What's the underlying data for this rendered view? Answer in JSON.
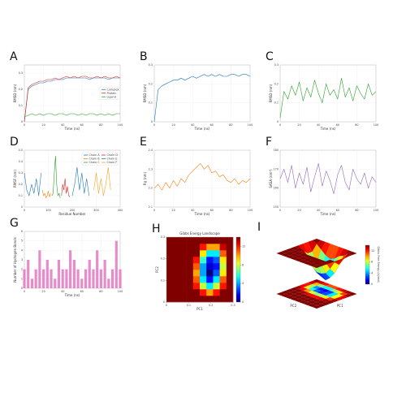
{
  "chart_data": [
    {
      "type": "line",
      "panel": "A",
      "xlabel": "Time (ns)",
      "ylabel": "RMSD (nm)",
      "legend": "right",
      "grid": true,
      "x": [
        0,
        4,
        8,
        12,
        16,
        20,
        24,
        28,
        32,
        36,
        40,
        44,
        48,
        52,
        56,
        60,
        64,
        68,
        72,
        76,
        80,
        84,
        88,
        92,
        96,
        100
      ],
      "xlim": [
        0,
        100
      ],
      "xticks": [
        0,
        20,
        40,
        60,
        80,
        100
      ],
      "ylim": [
        0,
        0.35
      ],
      "yticks": [
        0,
        0.1,
        0.2,
        0.3
      ],
      "series": [
        {
          "name": "Complex",
          "color": "#1f77b4",
          "values": [
            0,
            0.2,
            0.22,
            0.23,
            0.24,
            0.24,
            0.25,
            0.25,
            0.26,
            0.26,
            0.26,
            0.27,
            0.27,
            0.27,
            0.27,
            0.27,
            0.27,
            0.26,
            0.27,
            0.27,
            0.27,
            0.27,
            0.26,
            0.27,
            0.27,
            0.27
          ]
        },
        {
          "name": "Protein",
          "color": "#d62728",
          "values": [
            0,
            0.21,
            0.23,
            0.24,
            0.25,
            0.25,
            0.26,
            0.26,
            0.27,
            0.26,
            0.27,
            0.28,
            0.27,
            0.28,
            0.27,
            0.28,
            0.28,
            0.27,
            0.27,
            0.28,
            0.27,
            0.28,
            0.27,
            0.27,
            0.28,
            0.27
          ]
        },
        {
          "name": "Ligand",
          "color": "#2ca02c",
          "values": [
            0.03,
            0.04,
            0.05,
            0.04,
            0.05,
            0.04,
            0.05,
            0.05,
            0.04,
            0.05,
            0.05,
            0.04,
            0.05,
            0.05,
            0.04,
            0.05,
            0.04,
            0.05,
            0.05,
            0.04,
            0.05,
            0.04,
            0.05,
            0.04,
            0.05,
            0.05
          ]
        }
      ]
    },
    {
      "type": "line",
      "panel": "B",
      "xlabel": "Time (ns)",
      "ylabel": "RMSD (nm)",
      "grid": true,
      "x": [
        0,
        4,
        8,
        12,
        16,
        20,
        24,
        28,
        32,
        36,
        40,
        44,
        48,
        52,
        56,
        60,
        64,
        68,
        72,
        76,
        80,
        84,
        88,
        92,
        96,
        100
      ],
      "xlim": [
        0,
        100
      ],
      "xticks": [
        0,
        20,
        40,
        60,
        80,
        100
      ],
      "ylim": [
        0,
        0.3
      ],
      "yticks": [
        0,
        0.1,
        0.2,
        0.3
      ],
      "series": [
        {
          "color": "#1f77b4",
          "values": [
            0,
            0.17,
            0.19,
            0.2,
            0.21,
            0.22,
            0.22,
            0.23,
            0.22,
            0.23,
            0.24,
            0.23,
            0.24,
            0.25,
            0.24,
            0.25,
            0.24,
            0.25,
            0.24,
            0.24,
            0.25,
            0.25,
            0.24,
            0.25,
            0.25,
            0.24
          ]
        }
      ]
    },
    {
      "type": "line",
      "panel": "C",
      "xlabel": "Time (ns)",
      "ylabel": "RMSD (nm)",
      "grid": true,
      "x": [
        0,
        4,
        8,
        12,
        16,
        20,
        24,
        28,
        32,
        36,
        40,
        44,
        48,
        52,
        56,
        60,
        64,
        68,
        72,
        76,
        80,
        84,
        88,
        92,
        96,
        100
      ],
      "xlim": [
        0,
        100
      ],
      "xticks": [
        0,
        20,
        40,
        60,
        80,
        100
      ],
      "ylim": [
        0,
        0.3
      ],
      "yticks": [
        0,
        0.1,
        0.2,
        0.3
      ],
      "series": [
        {
          "color": "#2ca02c",
          "values": [
            0.02,
            0.16,
            0.12,
            0.19,
            0.14,
            0.21,
            0.11,
            0.18,
            0.13,
            0.22,
            0.15,
            0.1,
            0.2,
            0.14,
            0.17,
            0.12,
            0.23,
            0.13,
            0.18,
            0.11,
            0.19,
            0.15,
            0.12,
            0.2,
            0.14,
            0.16
          ]
        }
      ]
    },
    {
      "type": "line",
      "panel": "D",
      "xlabel": "Residue Number",
      "ylabel": "RMSF (nm)",
      "legend": "upper right",
      "grid": true,
      "xlim": [
        0,
        400
      ],
      "xticks": [
        0,
        100,
        200,
        300,
        400
      ],
      "ylim": [
        0,
        0.5
      ],
      "yticks": [
        0,
        0.1,
        0.2,
        0.3,
        0.4,
        0.5
      ],
      "series": [
        {
          "name": "Chain A",
          "color": "#1f77b4",
          "x": [
            0,
            10,
            20,
            30,
            40,
            50,
            60,
            70
          ],
          "values": [
            0.3,
            0.15,
            0.1,
            0.2,
            0.12,
            0.25,
            0.1,
            0.3
          ]
        },
        {
          "name": "Chain B",
          "color": "#ff7f0e",
          "x": [
            75,
            80,
            85,
            90,
            95,
            100,
            105,
            110
          ],
          "values": [
            0.15,
            0.1,
            0.12,
            0.08,
            0.1,
            0.14,
            0.09,
            0.12
          ]
        },
        {
          "name": "Chain C",
          "color": "#2ca02c",
          "x": [
            115,
            120,
            125,
            130,
            135,
            140,
            145,
            150
          ],
          "values": [
            0.1,
            0.12,
            0.3,
            0.45,
            0.2,
            0.1,
            0.12,
            0.08
          ]
        },
        {
          "name": "Chain D",
          "color": "#d62728",
          "x": [
            155,
            160,
            165,
            170,
            175,
            180,
            185,
            190
          ],
          "values": [
            0.1,
            0.2,
            0.15,
            0.25,
            0.12,
            0.18,
            0.1,
            0.09
          ]
        },
        {
          "name": "Chain E",
          "color": "#1f77b4",
          "x": [
            200,
            210,
            220,
            230,
            240,
            250,
            260,
            270
          ],
          "values": [
            0.1,
            0.2,
            0.35,
            0.15,
            0.3,
            0.12,
            0.25,
            0.1
          ]
        },
        {
          "name": "Chain F",
          "color": "#ff9f1c",
          "x": [
            290,
            300,
            310,
            320,
            330,
            340,
            350,
            360
          ],
          "values": [
            0.15,
            0.3,
            0.12,
            0.25,
            0.1,
            0.2,
            0.35,
            0.15
          ]
        }
      ]
    },
    {
      "type": "line",
      "panel": "E",
      "xlabel": "Time (ns)",
      "ylabel": "Rg (nm)",
      "grid": true,
      "x": [
        0,
        4,
        8,
        12,
        16,
        20,
        24,
        28,
        32,
        36,
        40,
        44,
        48,
        52,
        56,
        60,
        64,
        68,
        72,
        76,
        80,
        84,
        88,
        92,
        96,
        100
      ],
      "xlim": [
        0,
        100
      ],
      "xticks": [
        0,
        20,
        40,
        60,
        80,
        100
      ],
      "ylim": [
        2.1,
        2.4
      ],
      "yticks": [
        2.1,
        2.2,
        2.3,
        2.4
      ],
      "series": [
        {
          "color": "#ff7f0e",
          "values": [
            2.2,
            2.22,
            2.19,
            2.23,
            2.2,
            2.24,
            2.21,
            2.25,
            2.23,
            2.27,
            2.29,
            2.31,
            2.33,
            2.3,
            2.32,
            2.28,
            2.29,
            2.26,
            2.27,
            2.24,
            2.23,
            2.25,
            2.22,
            2.24,
            2.23,
            2.25
          ]
        }
      ]
    },
    {
      "type": "line",
      "panel": "F",
      "xlabel": "Time (ns)",
      "ylabel": "SASA (nm²)",
      "grid": true,
      "x": [
        0,
        4,
        8,
        12,
        16,
        20,
        24,
        28,
        32,
        36,
        40,
        44,
        48,
        52,
        56,
        60,
        64,
        68,
        72,
        76,
        80,
        84,
        88,
        92,
        96,
        100
      ],
      "xlim": [
        0,
        100
      ],
      "xticks": [
        0,
        20,
        40,
        60,
        80,
        100
      ],
      "ylim": [
        150,
        180
      ],
      "yticks": [
        150,
        160,
        170,
        180
      ],
      "series": [
        {
          "color": "#9467bd",
          "values": [
            165,
            170,
            163,
            172,
            160,
            168,
            162,
            171,
            158,
            166,
            173,
            161,
            169,
            164,
            157,
            167,
            172,
            163,
            159,
            170,
            165,
            162,
            168,
            160,
            166,
            163
          ]
        }
      ]
    },
    {
      "type": "bar",
      "panel": "G",
      "xlabel": "Time (ns)",
      "ylabel": "Number of Hydrogen Bonds",
      "grid": true,
      "color": "#e377c2",
      "x": [
        0,
        4,
        8,
        12,
        16,
        20,
        24,
        28,
        32,
        36,
        40,
        44,
        48,
        52,
        56,
        60,
        64,
        68,
        72,
        76,
        80,
        84,
        88,
        92,
        96,
        100
      ],
      "xlim": [
        0,
        100
      ],
      "xticks": [
        0,
        20,
        40,
        60,
        80,
        100
      ],
      "ylim": [
        0,
        6
      ],
      "yticks": [
        0,
        1,
        2,
        3,
        4,
        5,
        6
      ],
      "values": [
        2,
        3,
        1,
        2,
        4,
        2,
        3,
        2,
        1,
        3,
        2,
        2,
        4,
        3,
        2,
        1,
        2,
        3,
        2,
        4,
        2,
        3,
        1,
        2,
        5,
        2
      ]
    },
    {
      "type": "heatmap",
      "panel": "H",
      "title": "Gibbs Energy Landscape",
      "xlabel": "PC1",
      "ylabel": "PC2",
      "xlim": [
        0,
        0.3
      ],
      "xticks": [
        0,
        0.1,
        0.2,
        0.3
      ],
      "ylim": [
        0,
        0.3
      ],
      "yticks": [
        0,
        0.1,
        0.2,
        0.3
      ],
      "zlim": [
        0,
        14
      ],
      "zticks": [
        0,
        4,
        8,
        12
      ],
      "z": [
        [
          14,
          14,
          14,
          14,
          14,
          14,
          14,
          14,
          14,
          14
        ],
        [
          14,
          14,
          14,
          14,
          14,
          12,
          10,
          12,
          14,
          14
        ],
        [
          14,
          14,
          14,
          14,
          12,
          8,
          5,
          8,
          12,
          14
        ],
        [
          14,
          14,
          14,
          14,
          11,
          5,
          2,
          5,
          11,
          14
        ],
        [
          14,
          14,
          14,
          14,
          10,
          4,
          0,
          3,
          9,
          14
        ],
        [
          14,
          14,
          14,
          14,
          11,
          4,
          1,
          2,
          8,
          14
        ],
        [
          14,
          14,
          14,
          14,
          12,
          6,
          2,
          3,
          9,
          14
        ],
        [
          14,
          14,
          14,
          14,
          14,
          9,
          5,
          5,
          11,
          14
        ],
        [
          14,
          14,
          14,
          14,
          14,
          12,
          10,
          10,
          13,
          14
        ],
        [
          14,
          14,
          14,
          14,
          14,
          14,
          14,
          14,
          14,
          14
        ]
      ]
    },
    {
      "type": "surface",
      "panel": "I",
      "xlabel": "PC1",
      "ylabel": "PC2",
      "zlabel": "Gibbs Free Energy (kJ/mol)",
      "zlim": [
        0,
        14
      ],
      "zticks": [
        0,
        4,
        8,
        12
      ],
      "z": [
        [
          14,
          14,
          14,
          14,
          14,
          14,
          14,
          14,
          14,
          14
        ],
        [
          14,
          14,
          14,
          14,
          14,
          12,
          10,
          12,
          14,
          14
        ],
        [
          14,
          14,
          14,
          14,
          12,
          8,
          5,
          8,
          12,
          14
        ],
        [
          14,
          14,
          14,
          14,
          11,
          5,
          2,
          5,
          11,
          14
        ],
        [
          14,
          14,
          14,
          14,
          10,
          4,
          0,
          3,
          9,
          14
        ],
        [
          14,
          14,
          14,
          14,
          11,
          4,
          1,
          2,
          8,
          14
        ],
        [
          14,
          14,
          14,
          14,
          12,
          6,
          2,
          3,
          9,
          14
        ],
        [
          14,
          14,
          14,
          14,
          14,
          9,
          5,
          5,
          11,
          14
        ],
        [
          14,
          14,
          14,
          14,
          14,
          12,
          10,
          10,
          13,
          14
        ],
        [
          14,
          14,
          14,
          14,
          14,
          14,
          14,
          14,
          14,
          14
        ]
      ]
    }
  ]
}
